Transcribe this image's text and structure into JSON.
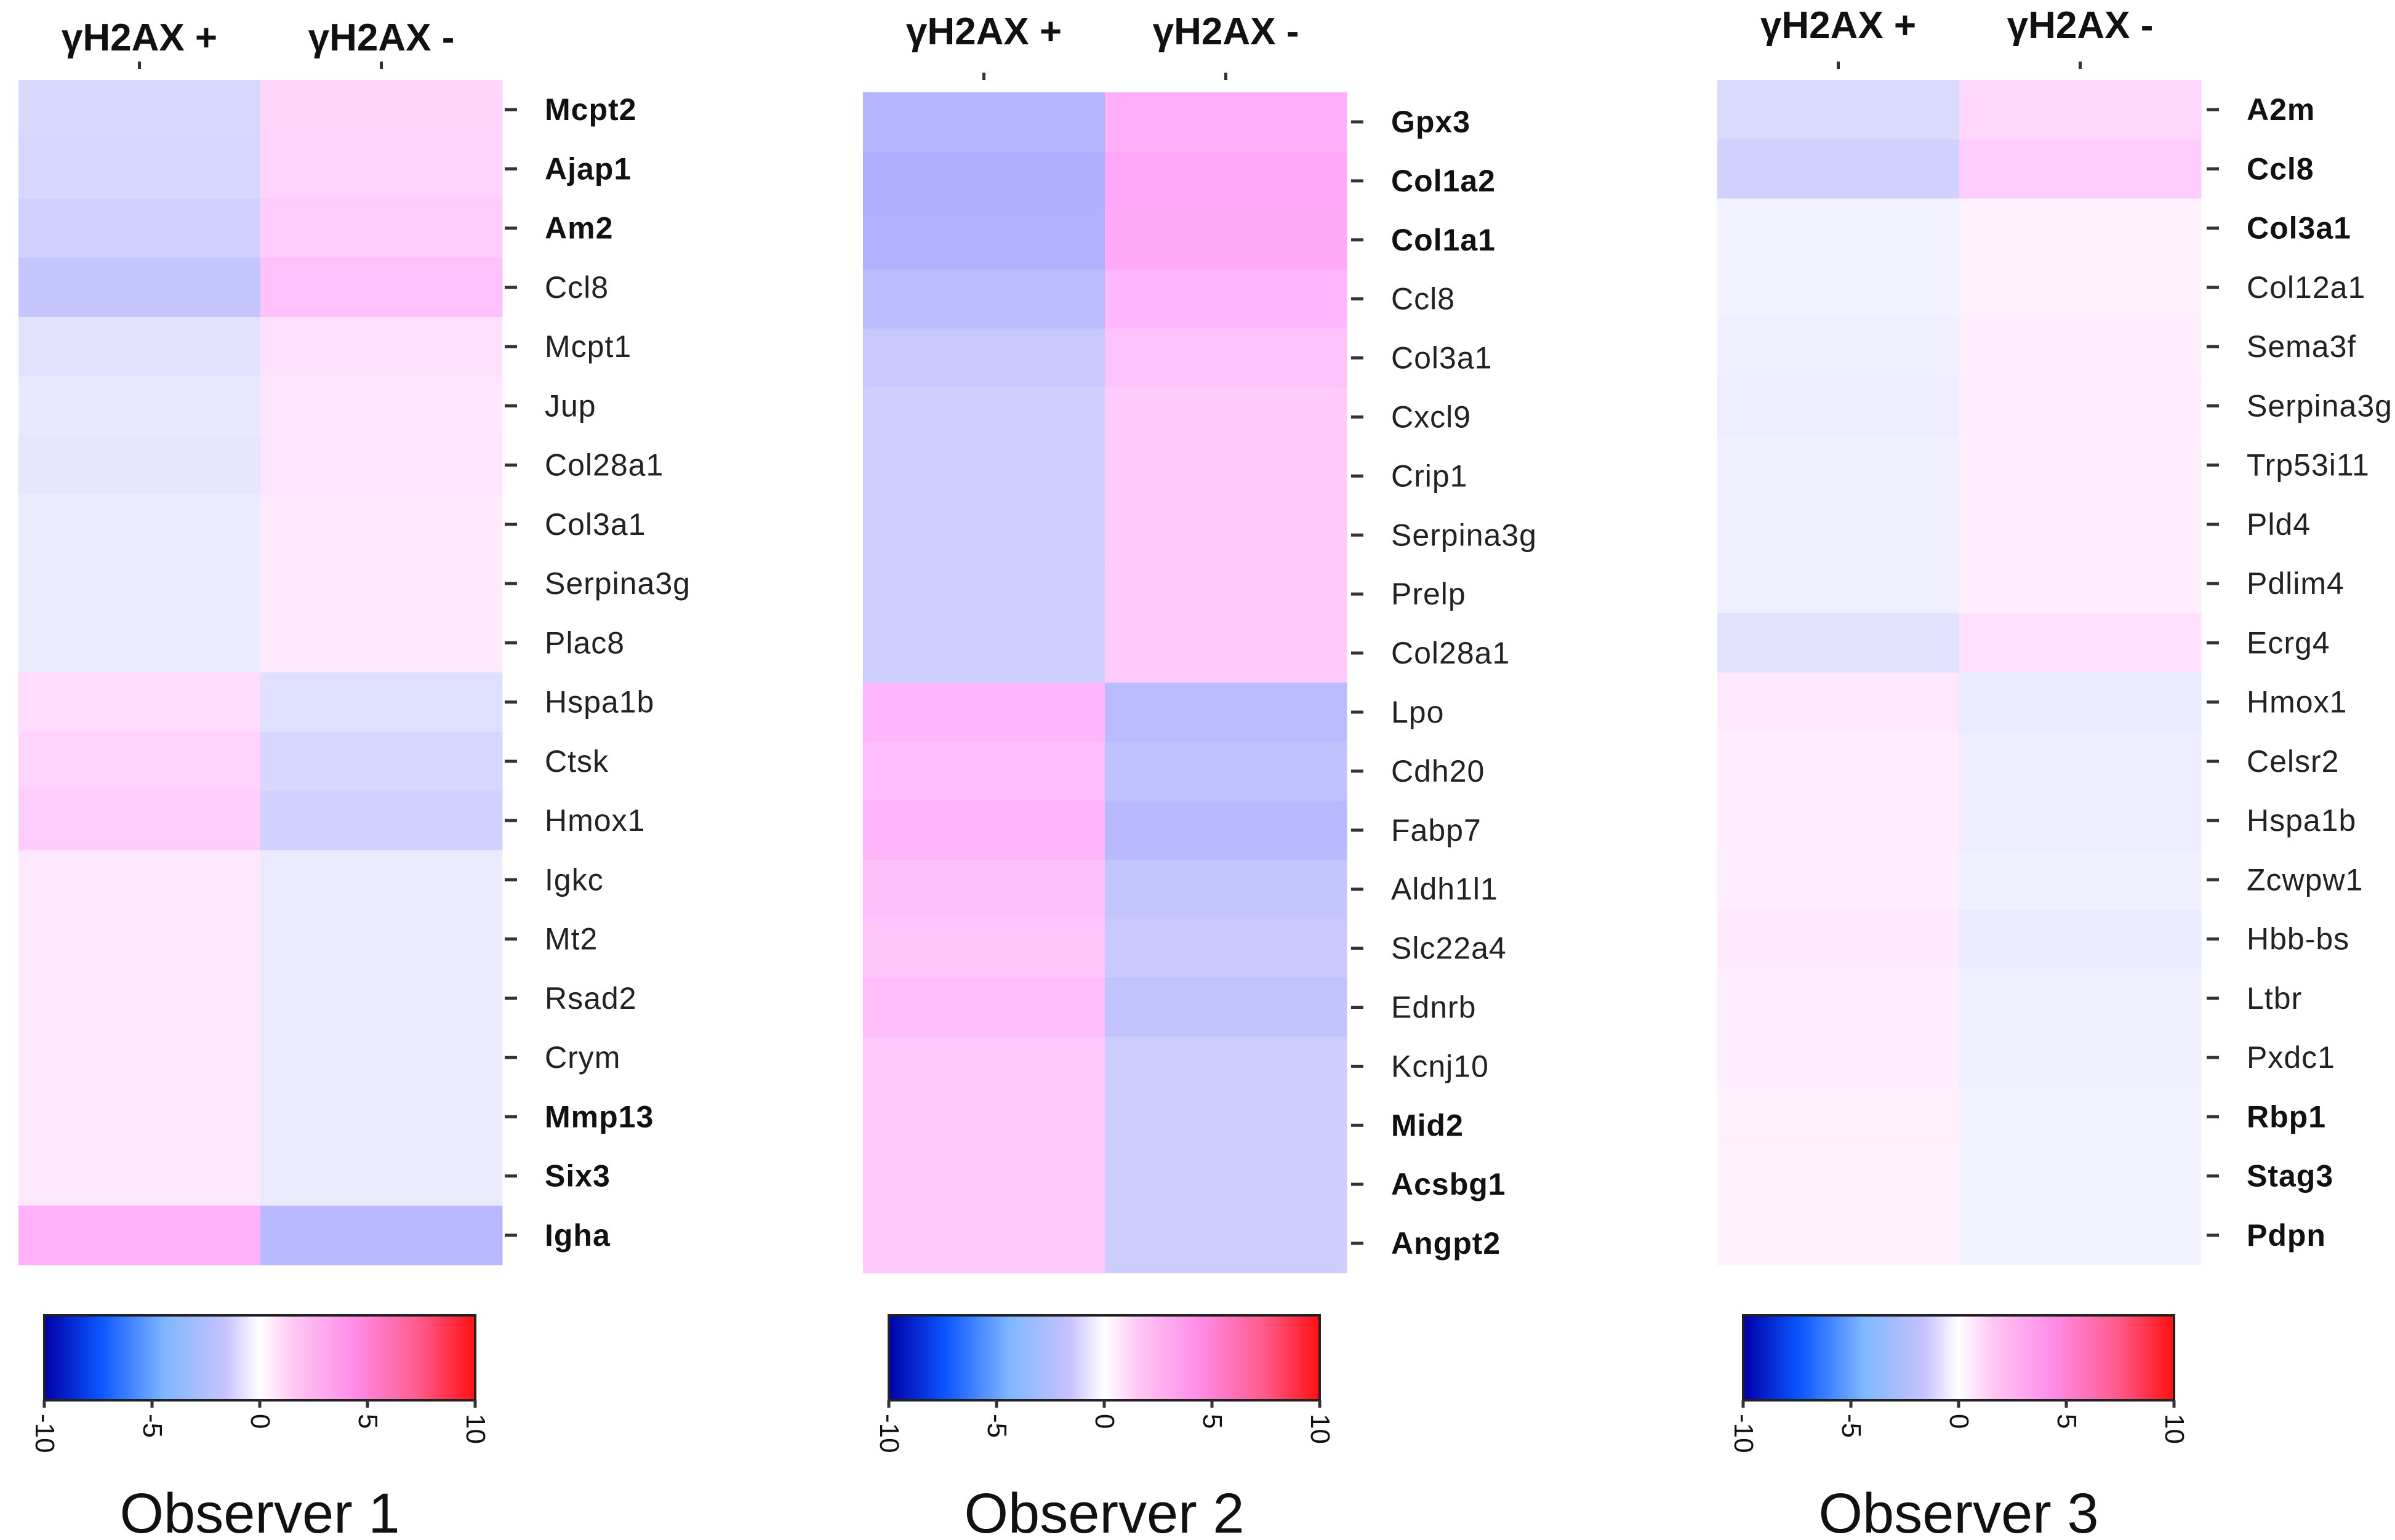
{
  "chart_data": [
    {
      "type": "heatmap",
      "title": "Observer 1",
      "columns": [
        "γH2AX +",
        "γH2AX -"
      ],
      "rows": [
        "Mcpt2",
        "Ajap1",
        "Am2",
        "Ccl8",
        "Mcpt1",
        "Jup",
        "Col28a1",
        "Col3a1",
        "Serpina3g",
        "Plac8",
        "Hspa1b",
        "Ctsk",
        "Hmox1",
        "Igkc",
        "Mt2",
        "Rsad2",
        "Crym",
        "Mmp13",
        "Six3",
        "Igha"
      ],
      "bold_rows": [
        "Mcpt2",
        "Ajap1",
        "Am2",
        "Mmp13",
        "Six3",
        "Igha"
      ],
      "values": [
        [
          -2.2,
          2.2
        ],
        [
          -2.3,
          2.3
        ],
        [
          -2.6,
          2.6
        ],
        [
          -3.2,
          3.2
        ],
        [
          -1.6,
          1.6
        ],
        [
          -1.3,
          1.3
        ],
        [
          -1.4,
          1.4
        ],
        [
          -1.1,
          1.1
        ],
        [
          -1.1,
          1.1
        ],
        [
          -1.1,
          1.1
        ],
        [
          1.8,
          -1.8
        ],
        [
          2.3,
          -2.3
        ],
        [
          2.6,
          -2.6
        ],
        [
          1.2,
          -1.2
        ],
        [
          1.2,
          -1.2
        ],
        [
          1.2,
          -1.2
        ],
        [
          1.2,
          -1.2
        ],
        [
          1.2,
          -1.2
        ],
        [
          1.2,
          -1.2
        ],
        [
          4.0,
          -4.0
        ]
      ],
      "colorbar": {
        "min": -10,
        "max": 10,
        "ticks": [
          -10,
          -5,
          0,
          5,
          10
        ]
      }
    },
    {
      "type": "heatmap",
      "title": "Observer 2",
      "columns": [
        "γH2AX +",
        "γH2AX -"
      ],
      "rows": [
        "Gpx3",
        "Col1a2",
        "Col1a1",
        "Ccl8",
        "Col3a1",
        "Cxcl9",
        "Crip1",
        "Serpina3g",
        "Prelp",
        "Col28a1",
        "Lpo",
        "Cdh20",
        "Fabp7",
        "Aldh1l1",
        "Slc22a4",
        "Ednrb",
        "Kcnj10",
        "Mid2",
        "Acsbg1",
        "Angpt2"
      ],
      "bold_rows": [
        "Gpx3",
        "Col1a2",
        "Col1a1",
        "Mid2",
        "Acsbg1",
        "Angpt2"
      ],
      "values": [
        [
          -4.2,
          4.2
        ],
        [
          -4.5,
          4.5
        ],
        [
          -4.4,
          4.4
        ],
        [
          -3.8,
          3.8
        ],
        [
          -3.1,
          3.1
        ],
        [
          -2.7,
          2.7
        ],
        [
          -2.7,
          2.7
        ],
        [
          -2.7,
          2.7
        ],
        [
          -2.7,
          2.7
        ],
        [
          -2.7,
          2.7
        ],
        [
          3.8,
          -3.8
        ],
        [
          3.5,
          -3.5
        ],
        [
          3.9,
          -3.9
        ],
        [
          3.3,
          -3.3
        ],
        [
          3.0,
          -3.0
        ],
        [
          3.4,
          -3.4
        ],
        [
          2.8,
          -2.8
        ],
        [
          2.8,
          -2.8
        ],
        [
          2.8,
          -2.8
        ],
        [
          2.8,
          -2.8
        ]
      ],
      "colorbar": {
        "min": -10,
        "max": 10,
        "ticks": [
          -10,
          -5,
          0,
          5,
          10
        ]
      }
    },
    {
      "type": "heatmap",
      "title": "Observer 3",
      "columns": [
        "γH2AX +",
        "γH2AX -"
      ],
      "rows": [
        "A2m",
        "Ccl8",
        "Col3a1",
        "Col12a1",
        "Sema3f",
        "Serpina3g",
        "Trp53i11",
        "Pld4",
        "Pdlim4",
        "Ecrg4",
        "Hmox1",
        "Celsr2",
        "Hspa1b",
        "Zcwpw1",
        "Hbb-bs",
        "Ltbr",
        "Pxdc1",
        "Rbp1",
        "Stag3",
        "Pdpn"
      ],
      "bold_rows": [
        "A2m",
        "Ccl8",
        "Col3a1",
        "Rbp1",
        "Stag3",
        "Pdpn"
      ],
      "values": [
        [
          -2.1,
          2.1
        ],
        [
          -2.6,
          2.6
        ],
        [
          -0.8,
          0.8
        ],
        [
          -0.8,
          0.8
        ],
        [
          -0.9,
          0.9
        ],
        [
          -1.0,
          1.0
        ],
        [
          -0.9,
          0.9
        ],
        [
          -0.9,
          0.9
        ],
        [
          -0.9,
          0.9
        ],
        [
          -1.6,
          1.6
        ],
        [
          1.2,
          -1.2
        ],
        [
          1.0,
          -1.0
        ],
        [
          1.0,
          -1.0
        ],
        [
          0.9,
          -0.9
        ],
        [
          1.1,
          -1.1
        ],
        [
          0.9,
          -0.9
        ],
        [
          0.9,
          -0.9
        ],
        [
          0.8,
          -0.8
        ],
        [
          0.7,
          -0.7
        ],
        [
          0.7,
          -0.7
        ]
      ],
      "colorbar": {
        "min": -10,
        "max": 10,
        "ticks": [
          -10,
          -5,
          0,
          5,
          10
        ]
      }
    }
  ]
}
